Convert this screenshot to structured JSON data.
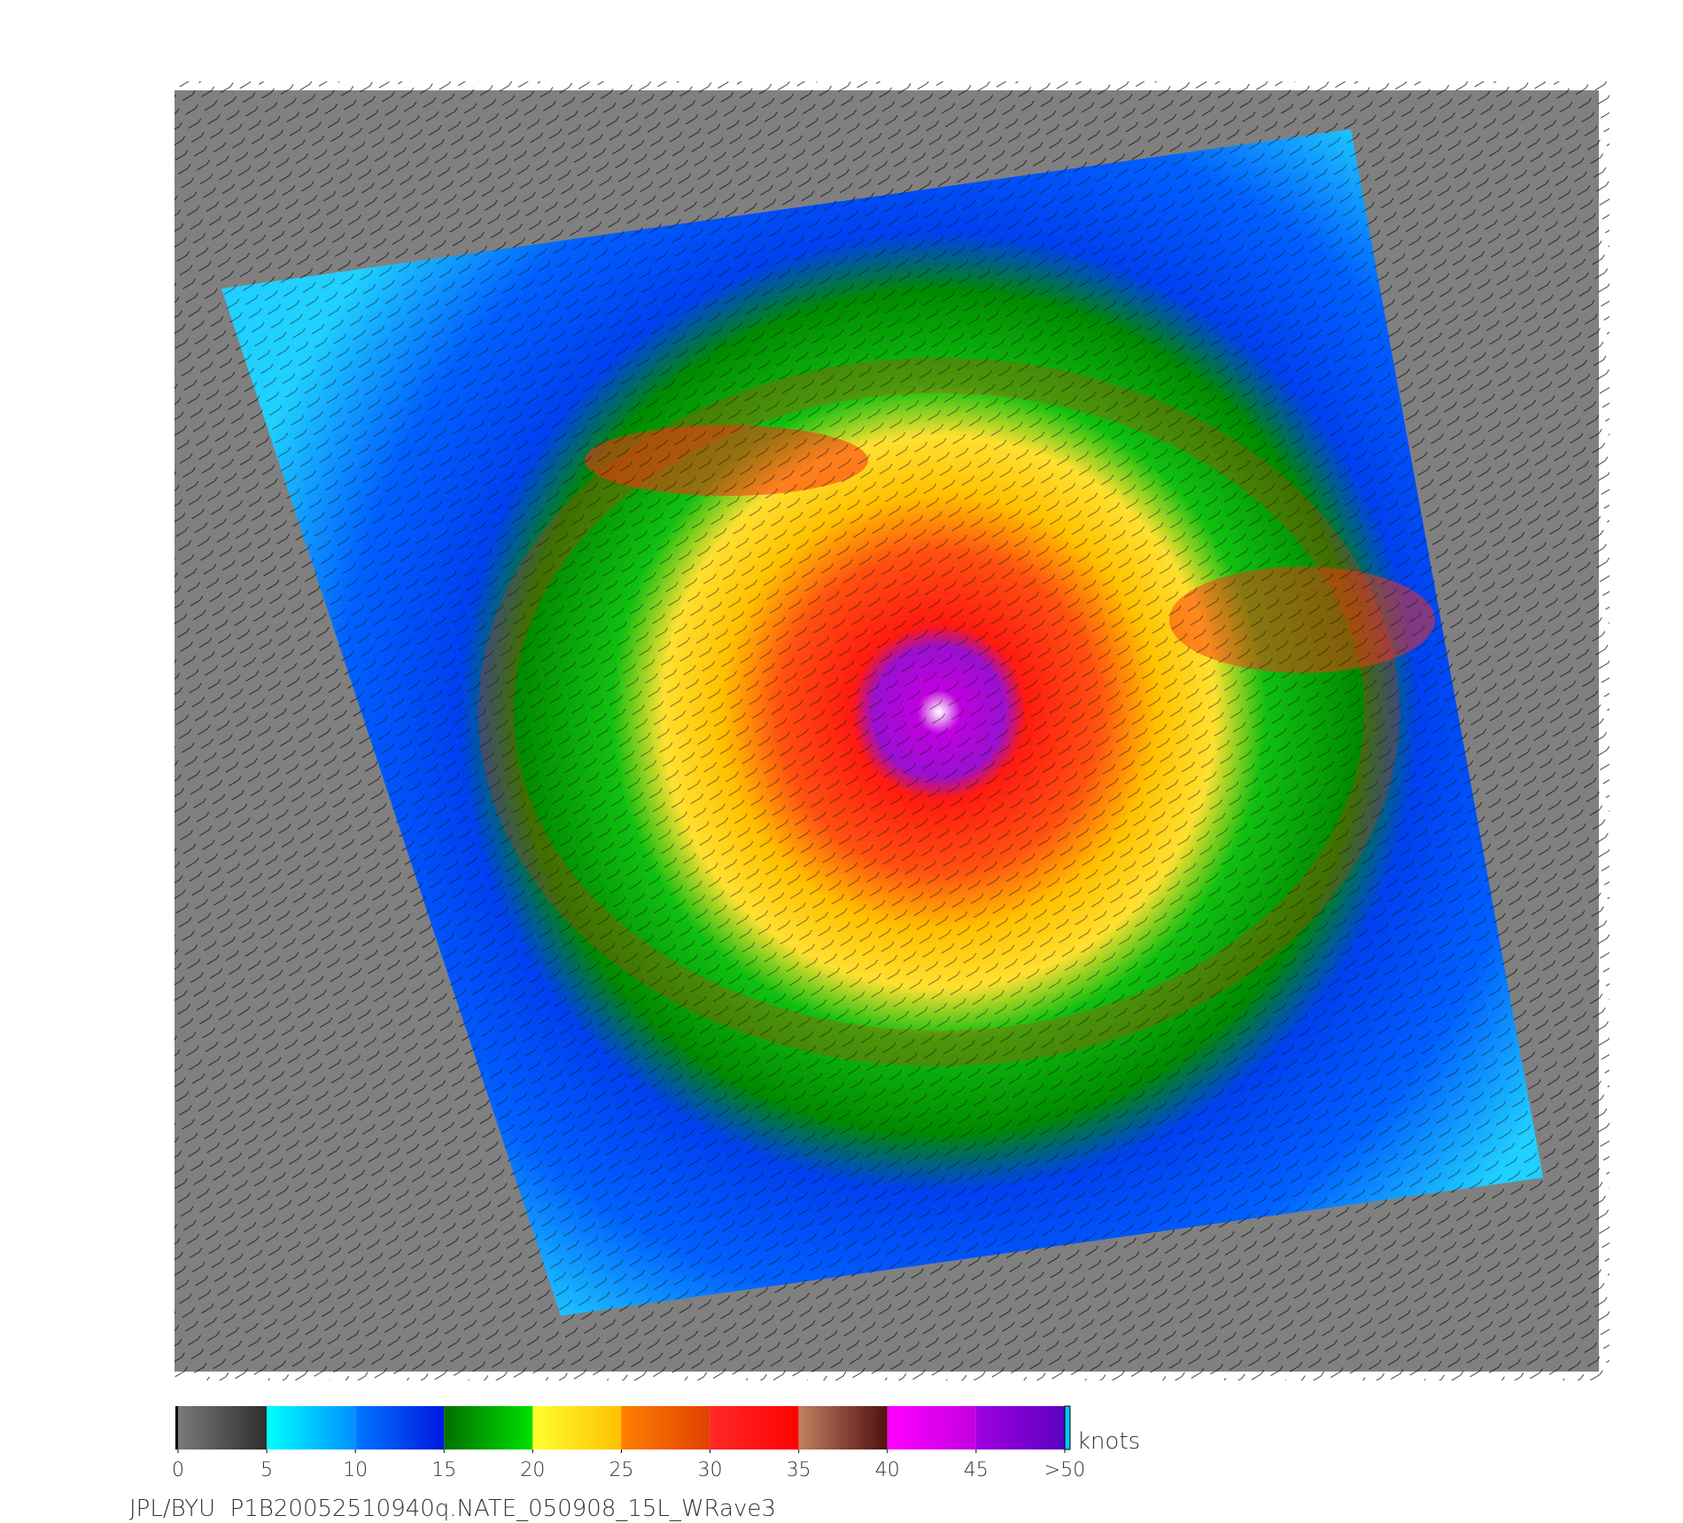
{
  "map": {
    "colorbar": {
      "lim": [
        0,
        50
      ],
      "ticks": [
        0,
        5,
        10,
        15,
        20,
        25,
        30,
        35,
        40,
        45,
        {
          "value": 50,
          "label": ">50"
        }
      ],
      "segments": [
        [
          "#7a7a7a",
          "#2e2e2e"
        ],
        [
          "#00ffff",
          "#0090ff"
        ],
        [
          "#0078ff",
          "#0018e0"
        ],
        [
          "#007000",
          "#00e000"
        ],
        [
          "#ffff30",
          "#ffc000"
        ],
        [
          "#ff8000",
          "#e04000"
        ],
        [
          "#ff2828",
          "#ff0000"
        ],
        [
          "#c08060",
          "#501010"
        ],
        [
          "#ff00ff",
          "#c000e0"
        ],
        [
          "#a000e0",
          "#5a00c0"
        ]
      ],
      "unit": "knots"
    },
    "footer": "JPL/BYU  P1B20052510940q.NATE_050908_15L_WRave3"
  }
}
